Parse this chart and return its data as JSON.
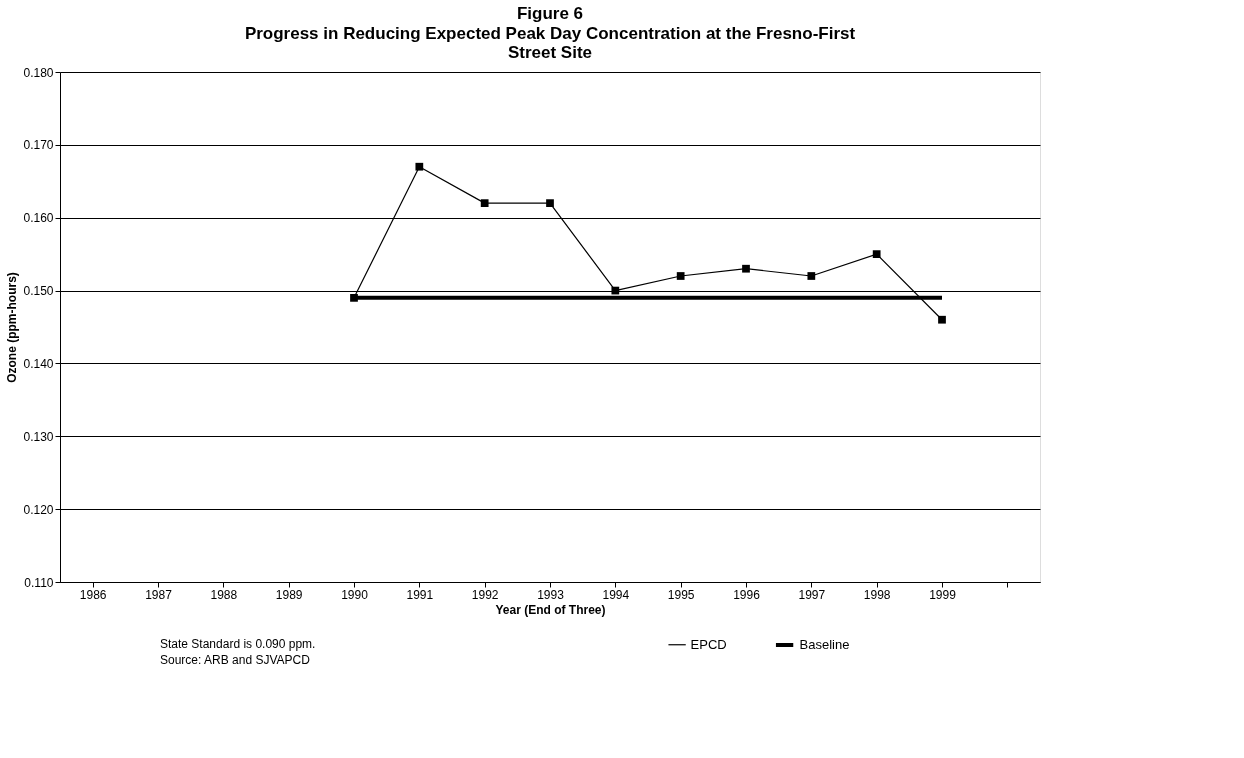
{
  "chart_data": {
    "type": "line",
    "title": "Figure 6",
    "subtitle": "Progress in Reducing Expected Peak Day Concentration at the Fresno-First Street Site",
    "xlabel": "Year (End of Three)",
    "ylabel": "Ozone (ppm-hours)",
    "categories": [
      "1986",
      "1987",
      "1988",
      "1989",
      "1990",
      "1991",
      "1992",
      "1993",
      "1994",
      "1995",
      "1996",
      "1997",
      "1998",
      "1999",
      null
    ],
    "series": [
      {
        "name": "EPCD",
        "color": "#000000",
        "marker": "square",
        "values": [
          null,
          null,
          null,
          null,
          0.149,
          0.167,
          0.162,
          0.162,
          0.15,
          0.152,
          0.153,
          0.152,
          0.155,
          0.146,
          null
        ]
      },
      {
        "name": "Baseline",
        "color": "#000000",
        "marker": "none",
        "values": [
          null,
          null,
          null,
          null,
          0.149,
          0.149,
          0.149,
          0.149,
          0.149,
          0.149,
          0.149,
          0.149,
          0.149,
          0.149,
          null
        ]
      }
    ],
    "ylim": [
      0.11,
      0.18
    ],
    "yticks": [
      {
        "value": 0.11,
        "label": "0.110"
      },
      {
        "value": 0.12,
        "label": "0.120"
      },
      {
        "value": 0.13,
        "label": "0.130"
      },
      {
        "value": 0.14,
        "label": "0.140"
      },
      {
        "value": 0.15,
        "label": "0.150"
      },
      {
        "value": 0.16,
        "label": "0.160"
      },
      {
        "value": 0.17,
        "label": "0.170"
      },
      {
        "value": 0.18,
        "label": "0.180"
      }
    ],
    "grid": "y",
    "legend": "bottom right",
    "line_style": "solid",
    "annotations": [
      "State Standard is 0.090 ppm.",
      "Source:  ARB and SJVAPCD"
    ]
  }
}
